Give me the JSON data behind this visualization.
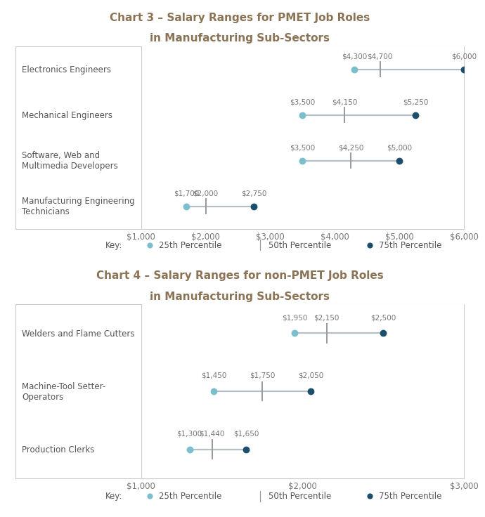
{
  "chart3": {
    "title_line1": "Chart 3 – Salary Ranges for PMET Job Roles",
    "title_line2": "in Manufacturing Sub-Sectors",
    "roles": [
      "Electronics Engineers",
      "Mechanical Engineers",
      "Software, Web and\nMultimedia Developers",
      "Manufacturing Engineering\nTechnicians"
    ],
    "p25": [
      4300,
      3500,
      3500,
      1700
    ],
    "p50": [
      4700,
      4150,
      4250,
      2000
    ],
    "p75": [
      6000,
      5250,
      5000,
      2750
    ],
    "xlim": [
      1000,
      6000
    ],
    "xticks": [
      1000,
      2000,
      3000,
      4000,
      5000,
      6000
    ],
    "xtick_labels": [
      "$1,000",
      "$2,000",
      "$3,000",
      "$4,000",
      "$5,000",
      "$6,000"
    ]
  },
  "chart4": {
    "title_line1": "Chart 4 – Salary Ranges for non-PMET Job Roles",
    "title_line2": "in Manufacturing Sub-Sectors",
    "roles": [
      "Welders and Flame Cutters",
      "Machine-Tool Setter-\nOperators",
      "Production Clerks"
    ],
    "p25": [
      1950,
      1450,
      1300
    ],
    "p50": [
      2150,
      1750,
      1440
    ],
    "p75": [
      2500,
      2050,
      1650
    ],
    "xlim": [
      1000,
      3000
    ],
    "xticks": [
      1000,
      2000,
      3000
    ],
    "xtick_labels": [
      "$1,000",
      "$2,000",
      "$3,000"
    ]
  },
  "color_p25": "#7bbfcc",
  "color_p75": "#1b4f6b",
  "color_line": "#b5bfc5",
  "color_p50_tick": "#999999",
  "title_color": "#8b7355",
  "label_color": "#555555",
  "tick_color": "#777777",
  "bg_color": "#ffffff",
  "border_color": "#cccccc",
  "key_label": "Key:",
  "legend_25": "25th Percentile",
  "legend_50": "50th Percentile",
  "legend_75": "75th Percentile"
}
